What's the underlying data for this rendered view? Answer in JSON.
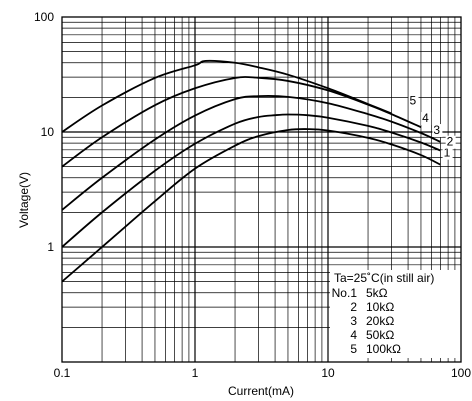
{
  "chart_data": {
    "type": "line",
    "xlabel": "Current(mA)",
    "ylabel": "Voltage(V)",
    "xscale": "log",
    "yscale": "log",
    "xlim": [
      0.1,
      100
    ],
    "ylim": [
      0.1,
      100
    ],
    "grid": true,
    "x_ticks": [
      "0.1",
      "1",
      "10",
      "100"
    ],
    "y_ticks": [
      "100",
      "10",
      "1"
    ],
    "legend": {
      "title": "Ta=25˚C(in still air)",
      "placement": "bottom-right",
      "rows": [
        {
          "no": "No.1",
          "value": "5kΩ"
        },
        {
          "no": "2",
          "value": "10kΩ"
        },
        {
          "no": "3",
          "value": "20kΩ"
        },
        {
          "no": "4",
          "value": "50kΩ"
        },
        {
          "no": "5",
          "value": "100kΩ"
        }
      ]
    },
    "series": [
      {
        "name": "1",
        "x": [
          0.1,
          0.2,
          0.5,
          1,
          2,
          3,
          5,
          7,
          10,
          20,
          30,
          50,
          70
        ],
        "y": [
          0.5,
          1.0,
          2.5,
          4.8,
          7.6,
          9.2,
          10.4,
          10.6,
          10.3,
          8.9,
          7.8,
          6.3,
          5.2
        ]
      },
      {
        "name": "2",
        "x": [
          0.1,
          0.2,
          0.5,
          1,
          2,
          3,
          4,
          5,
          7,
          10,
          20,
          30,
          50,
          70
        ],
        "y": [
          1.0,
          2.0,
          4.6,
          7.9,
          11.8,
          13.5,
          14.0,
          14.2,
          14.0,
          13.3,
          11.3,
          9.9,
          8.1,
          6.9
        ]
      },
      {
        "name": "3",
        "x": [
          0.1,
          0.2,
          0.5,
          1,
          2,
          3,
          5,
          10,
          20,
          30,
          50,
          70
        ],
        "y": [
          2.1,
          4.0,
          8.6,
          13.9,
          19.3,
          20.5,
          20.2,
          17.8,
          14.3,
          12.3,
          9.8,
          8.2
        ]
      },
      {
        "name": "4",
        "x": [
          0.1,
          0.2,
          0.5,
          1,
          2,
          3,
          5,
          10,
          20,
          30,
          50
        ],
        "y": [
          5.0,
          9.0,
          17.1,
          24.0,
          29.5,
          29.6,
          27.8,
          23.0,
          17.3,
          14.3,
          11.0
        ]
      },
      {
        "name": "5",
        "x": [
          0.1,
          0.2,
          0.5,
          1,
          1.2,
          2,
          3,
          5,
          10,
          20,
          30
        ],
        "y": [
          10.0,
          17.0,
          29.5,
          38.0,
          41.5,
          40.0,
          36.5,
          31.5,
          24.0,
          17.5,
          14.5
        ]
      }
    ]
  }
}
